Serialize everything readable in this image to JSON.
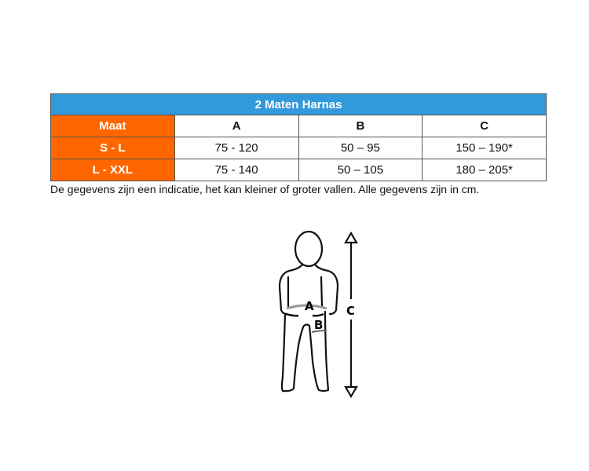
{
  "table": {
    "title": "2 Maten Harnas",
    "header": {
      "size": "Maat",
      "columns": [
        "A",
        "B",
        "C"
      ]
    },
    "rows": [
      {
        "size": "S - L",
        "values": [
          "75 - 120",
          "50 – 95",
          "150 – 190*"
        ]
      },
      {
        "size": "L - XXL",
        "values": [
          "75 - 140",
          "50 – 105",
          "180 – 205*"
        ]
      }
    ]
  },
  "caption": "De gegevens zijn een indicatie, het kan kleiner of groter vallen. Alle gegevens zijn in cm.",
  "figure": {
    "labels": {
      "a": "A",
      "b": "B",
      "c": "C"
    }
  },
  "colors": {
    "title_bg": "#3399dd",
    "size_bg": "#ff6600"
  }
}
